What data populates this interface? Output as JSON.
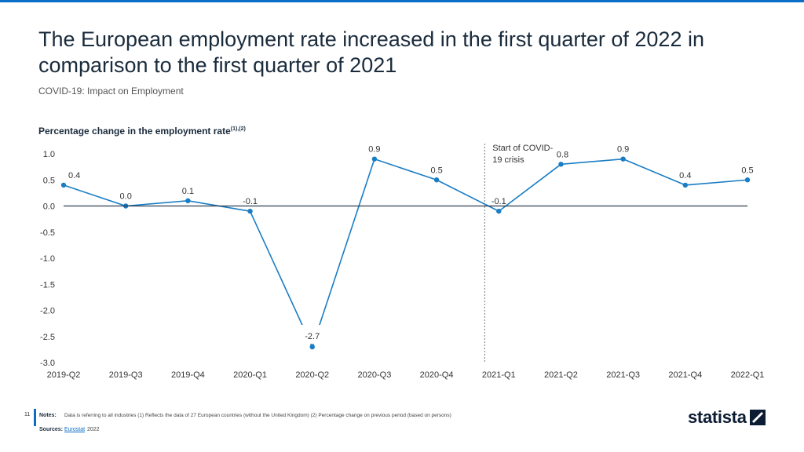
{
  "header": {
    "title": "The European employment rate increased in the first quarter of 2022 in comparison to the first quarter of 2021",
    "subtitle": "COVID-19: Impact on Employment"
  },
  "chart_data": {
    "type": "line",
    "title": "Percentage change in the employment rate",
    "title_superscript": "(1),(2)",
    "categories": [
      "2019-Q2",
      "2019-Q3",
      "2019-Q4",
      "2020-Q1",
      "2020-Q2",
      "2020-Q3",
      "2020-Q4",
      "2021-Q1",
      "2021-Q2",
      "2021-Q3",
      "2021-Q4",
      "2022-Q1"
    ],
    "series": [
      {
        "name": "Percentage change in the employment rate",
        "values": [
          0.4,
          0.0,
          0.1,
          -0.1,
          -2.7,
          0.9,
          0.5,
          -0.1,
          0.8,
          0.9,
          0.4,
          0.5
        ],
        "labels": [
          "0.4",
          "0.0",
          "0.1",
          "-0.1",
          "-2.7",
          "0.9",
          "0.5",
          "-0.1",
          "0.8",
          "0.9",
          "0.4",
          "0.5"
        ]
      }
    ],
    "ylim": [
      -3.0,
      1.0
    ],
    "yticks": [
      1.0,
      0.5,
      0.0,
      -0.5,
      -1.0,
      -1.5,
      -2.0,
      -2.5,
      -3.0
    ],
    "ytick_labels": [
      "1.0",
      "0.5",
      "0.0",
      "-0.5",
      "-1.0",
      "-1.5",
      "-2.0",
      "-2.5",
      "-3.0"
    ],
    "annotation": {
      "text_line1": "Start of COVID-",
      "text_line2": "19 crisis",
      "category": "2021-Q1"
    },
    "line_color": "#1a7dc4",
    "zero_line_color": "#2d3e50"
  },
  "footer": {
    "page_number": "11",
    "notes_label": "Notes:",
    "notes_text": "Data is referring to all industries (1) Reflects the data of 27 European countries (without the United Kingdom) (2) Percentage change on previous period (based on persons)",
    "sources_label": "Sources:",
    "sources_link": "Eurostat",
    "sources_year": "2022",
    "logo_text": "statista"
  }
}
